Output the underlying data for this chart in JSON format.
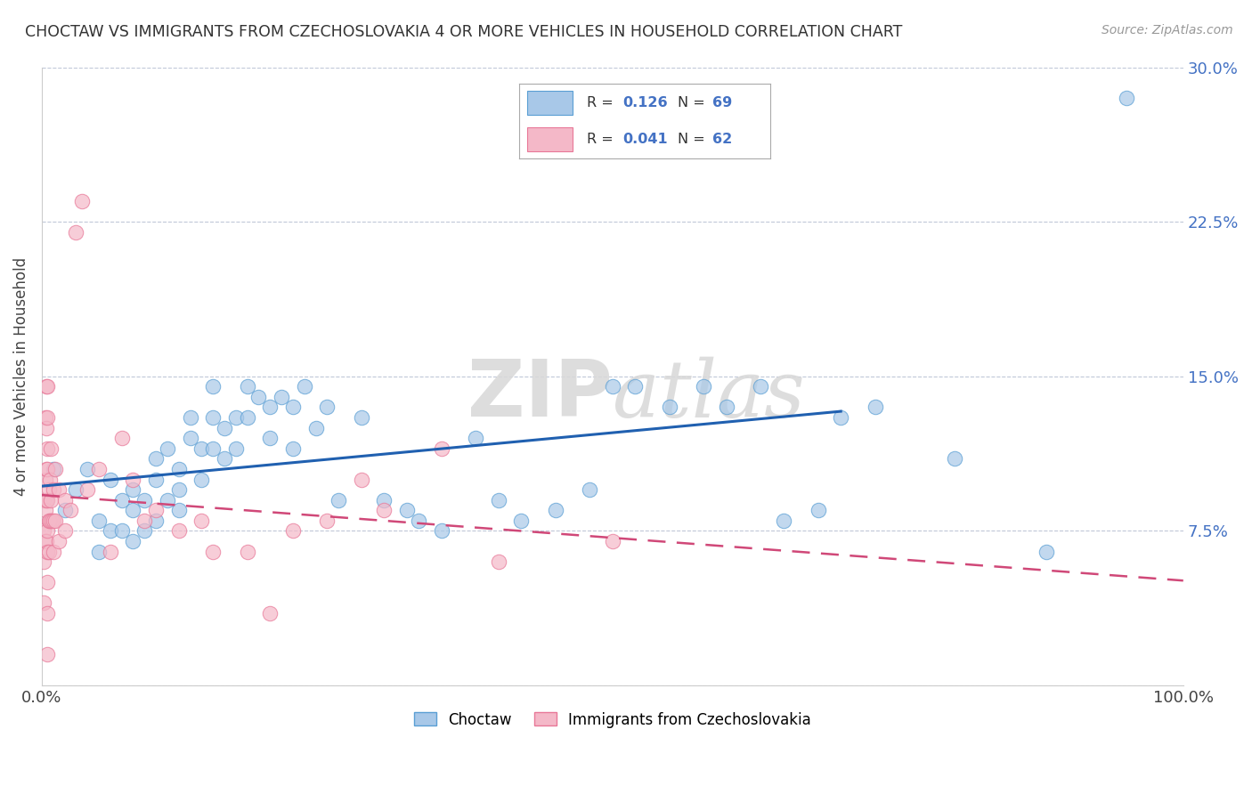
{
  "title": "CHOCTAW VS IMMIGRANTS FROM CZECHOSLOVAKIA 4 OR MORE VEHICLES IN HOUSEHOLD CORRELATION CHART",
  "source": "Source: ZipAtlas.com",
  "ylabel": "4 or more Vehicles in Household",
  "xlim": [
    0,
    1.0
  ],
  "ylim": [
    0,
    0.3
  ],
  "yticks": [
    0.0,
    0.075,
    0.15,
    0.225,
    0.3
  ],
  "ytick_labels": [
    "",
    "7.5%",
    "15.0%",
    "22.5%",
    "30.0%"
  ],
  "blue_color": "#a8c8e8",
  "blue_edge_color": "#5a9fd4",
  "pink_color": "#f4b8c8",
  "pink_edge_color": "#e87898",
  "blue_line_color": "#2060b0",
  "pink_line_color": "#d04878",
  "watermark_color": "#d8d8d8",
  "background_color": "#ffffff",
  "grid_color": "#c0c8d8",
  "blue_scatter_x": [
    0.01,
    0.02,
    0.03,
    0.04,
    0.05,
    0.05,
    0.06,
    0.06,
    0.07,
    0.07,
    0.08,
    0.08,
    0.08,
    0.09,
    0.09,
    0.1,
    0.1,
    0.1,
    0.11,
    0.11,
    0.12,
    0.12,
    0.12,
    0.13,
    0.13,
    0.14,
    0.14,
    0.15,
    0.15,
    0.15,
    0.16,
    0.16,
    0.17,
    0.17,
    0.18,
    0.18,
    0.19,
    0.2,
    0.2,
    0.21,
    0.22,
    0.22,
    0.23,
    0.24,
    0.25,
    0.26,
    0.28,
    0.3,
    0.32,
    0.33,
    0.35,
    0.38,
    0.4,
    0.42,
    0.45,
    0.48,
    0.5,
    0.52,
    0.55,
    0.58,
    0.6,
    0.63,
    0.65,
    0.68,
    0.7,
    0.73,
    0.8,
    0.88,
    0.95
  ],
  "blue_scatter_y": [
    0.105,
    0.085,
    0.095,
    0.105,
    0.08,
    0.065,
    0.1,
    0.075,
    0.09,
    0.075,
    0.095,
    0.085,
    0.07,
    0.09,
    0.075,
    0.11,
    0.1,
    0.08,
    0.115,
    0.09,
    0.105,
    0.095,
    0.085,
    0.13,
    0.12,
    0.115,
    0.1,
    0.145,
    0.13,
    0.115,
    0.125,
    0.11,
    0.13,
    0.115,
    0.145,
    0.13,
    0.14,
    0.135,
    0.12,
    0.14,
    0.135,
    0.115,
    0.145,
    0.125,
    0.135,
    0.09,
    0.13,
    0.09,
    0.085,
    0.08,
    0.075,
    0.12,
    0.09,
    0.08,
    0.085,
    0.095,
    0.145,
    0.145,
    0.135,
    0.145,
    0.135,
    0.145,
    0.08,
    0.085,
    0.13,
    0.135,
    0.11,
    0.065,
    0.285
  ],
  "pink_scatter_x": [
    0.002,
    0.002,
    0.002,
    0.002,
    0.003,
    0.003,
    0.003,
    0.003,
    0.004,
    0.004,
    0.004,
    0.004,
    0.004,
    0.005,
    0.005,
    0.005,
    0.005,
    0.005,
    0.005,
    0.005,
    0.005,
    0.005,
    0.005,
    0.006,
    0.006,
    0.006,
    0.007,
    0.007,
    0.008,
    0.008,
    0.009,
    0.01,
    0.01,
    0.01,
    0.012,
    0.012,
    0.015,
    0.015,
    0.02,
    0.02,
    0.025,
    0.03,
    0.035,
    0.04,
    0.05,
    0.06,
    0.07,
    0.08,
    0.09,
    0.1,
    0.12,
    0.14,
    0.15,
    0.18,
    0.2,
    0.22,
    0.25,
    0.28,
    0.3,
    0.35,
    0.4,
    0.5
  ],
  "pink_scatter_y": [
    0.09,
    0.075,
    0.06,
    0.04,
    0.13,
    0.1,
    0.085,
    0.07,
    0.145,
    0.125,
    0.105,
    0.09,
    0.07,
    0.145,
    0.13,
    0.115,
    0.105,
    0.09,
    0.075,
    0.065,
    0.05,
    0.035,
    0.015,
    0.095,
    0.08,
    0.065,
    0.1,
    0.08,
    0.115,
    0.09,
    0.08,
    0.095,
    0.08,
    0.065,
    0.105,
    0.08,
    0.095,
    0.07,
    0.09,
    0.075,
    0.085,
    0.22,
    0.235,
    0.095,
    0.105,
    0.065,
    0.12,
    0.1,
    0.08,
    0.085,
    0.075,
    0.08,
    0.065,
    0.065,
    0.035,
    0.075,
    0.08,
    0.1,
    0.085,
    0.115,
    0.06,
    0.07
  ],
  "legend_label_blue": "Choctaw",
  "legend_label_pink": "Immigrants from Czechoslovakia"
}
